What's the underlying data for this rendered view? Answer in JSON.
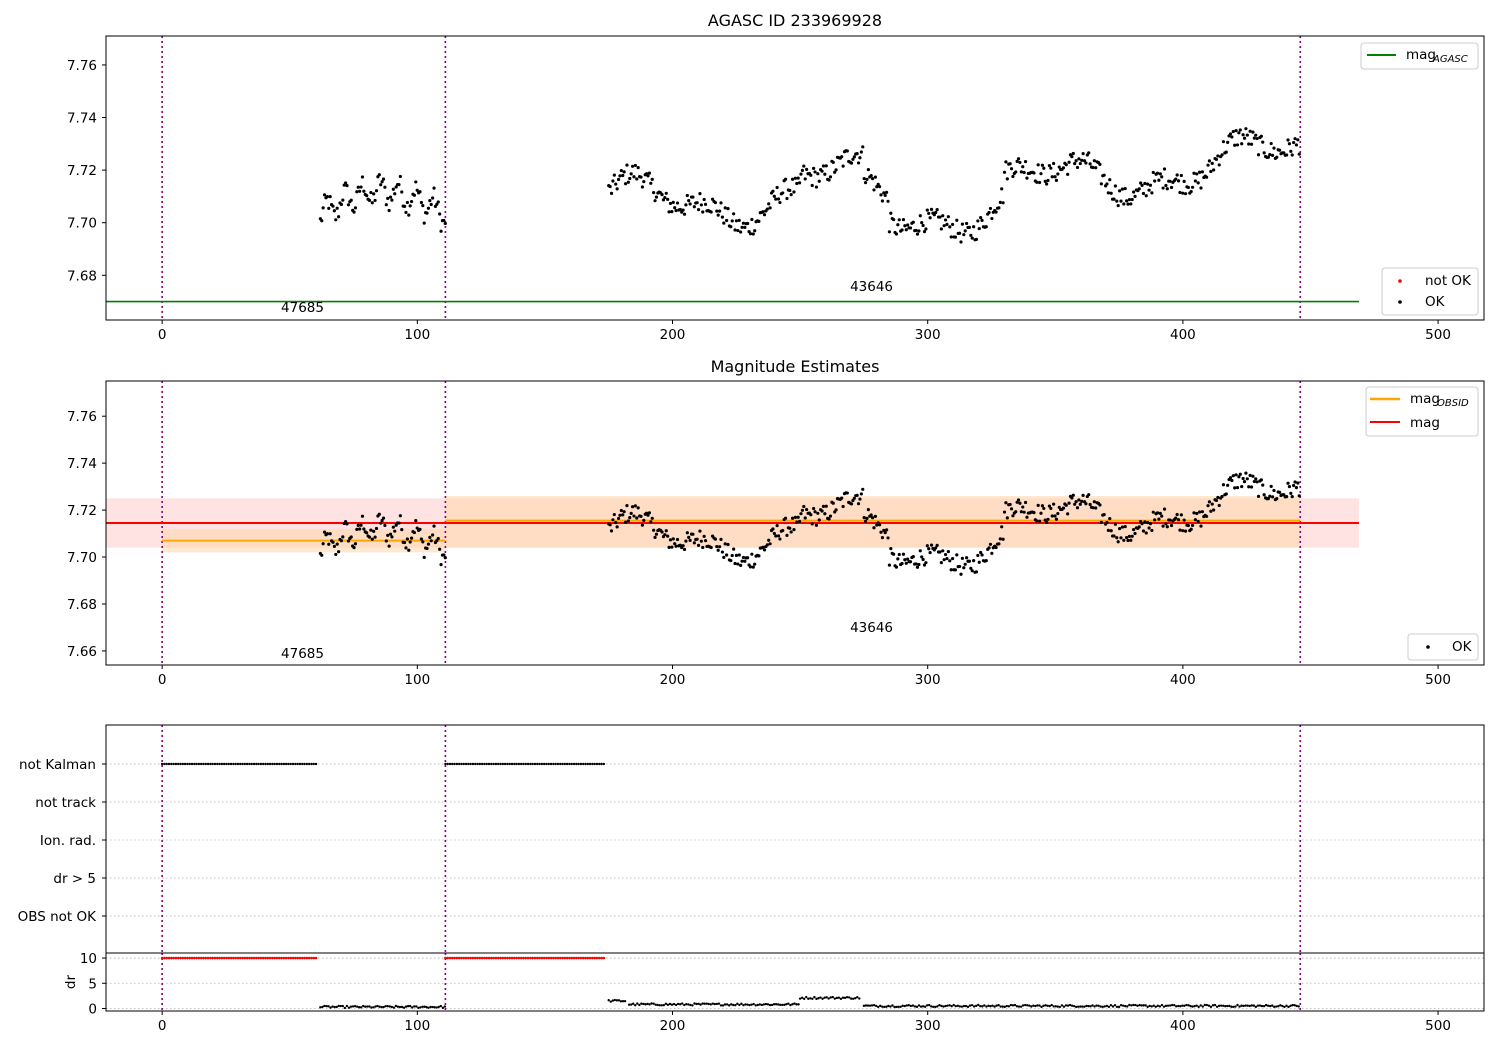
{
  "colors": {
    "agasc": "#008000",
    "obsid": "#ffa500",
    "mag": "#ff0000",
    "ok": "#000000",
    "not_ok": "#ff0000",
    "vline": "#800080",
    "mag_band": "#ffcccc",
    "obsid_band": "#ffd8b0"
  },
  "chart_data": [
    {
      "type": "scatter",
      "title": "AGASC ID 233969928",
      "xlim": [
        -22,
        518
      ],
      "ylim": [
        7.663,
        7.771
      ],
      "xticks": [
        0,
        100,
        200,
        300,
        400,
        500
      ],
      "yticks": [
        7.68,
        7.7,
        7.72,
        7.74,
        7.76
      ],
      "obsid_boundaries": [
        0,
        111,
        446
      ],
      "obsid_labels": [
        {
          "text": "47685",
          "x": 55,
          "y": 7.666
        },
        {
          "text": "43646",
          "x": 278,
          "y": 7.674
        }
      ],
      "lines": [
        {
          "name": "mag_AGASC",
          "label_main": "mag",
          "label_sub": "AGASC",
          "x": [
            -22,
            469
          ],
          "y": [
            7.67,
            7.67
          ],
          "color": "#008000"
        }
      ],
      "legend_lines_position": "upper-right",
      "legend_points_position": "lower-right",
      "legend_points": [
        {
          "label": "not OK",
          "color": "#ff0000"
        },
        {
          "label": "OK",
          "color": "#000000"
        }
      ],
      "series": [
        {
          "name": "OK",
          "x_range": [
            62,
            111
          ],
          "note": "points"
        },
        {
          "name": "OK",
          "x_range": [
            175,
            446
          ],
          "note": "points"
        }
      ]
    },
    {
      "type": "scatter",
      "title": "Magnitude Estimates",
      "xlim": [
        -22,
        518
      ],
      "ylim": [
        7.654,
        7.775
      ],
      "xticks": [
        0,
        100,
        200,
        300,
        400,
        500
      ],
      "yticks": [
        7.66,
        7.68,
        7.7,
        7.72,
        7.74,
        7.76
      ],
      "obsid_boundaries": [
        0,
        111,
        446
      ],
      "obsid_labels": [
        {
          "text": "47685",
          "x": 55,
          "y": 7.657
        },
        {
          "text": "43646",
          "x": 278,
          "y": 7.668
        }
      ],
      "bands": [
        {
          "name": "mag",
          "x": [
            -22,
            469
          ],
          "y": [
            7.704,
            7.725
          ],
          "color": "#ffcccc"
        },
        {
          "name": "mag_OBSID 47685",
          "x": [
            0,
            111
          ],
          "y": [
            7.702,
            7.712
          ],
          "color": "#ffd8b0"
        },
        {
          "name": "mag_OBSID 43646",
          "x": [
            111,
            446
          ],
          "y": [
            7.704,
            7.726
          ],
          "color": "#ffd8b0"
        }
      ],
      "lines": [
        {
          "name": "mag_OBSID 47685",
          "x": [
            0,
            111
          ],
          "y": [
            7.707,
            7.707
          ],
          "color": "#ffa500"
        },
        {
          "name": "mag_OBSID 43646",
          "x": [
            111,
            446
          ],
          "y": [
            7.7155,
            7.7155
          ],
          "color": "#ffa500"
        },
        {
          "name": "mag",
          "x": [
            -22,
            469
          ],
          "y": [
            7.7145,
            7.7145
          ],
          "color": "#ff0000"
        }
      ],
      "legend_lines": [
        {
          "label_main": "mag",
          "label_sub": "OBSID",
          "color": "#ffa500"
        },
        {
          "label_main": "mag",
          "label_sub": "",
          "color": "#ff0000"
        }
      ],
      "legend_points": [
        {
          "label": "OK",
          "color": "#000000"
        }
      ]
    },
    {
      "type": "scatter",
      "title": "",
      "xlim": [
        -22,
        518
      ],
      "categories": [
        "not Kalman",
        "not track",
        "Ion. rad.",
        "dr > 5",
        "OBS not OK"
      ],
      "flag_segments": [
        {
          "category": "not Kalman",
          "x_range": [
            0,
            61
          ]
        },
        {
          "category": "not Kalman",
          "x_range": [
            111,
            174
          ]
        }
      ],
      "obsid_boundaries": [
        0,
        111,
        446
      ]
    },
    {
      "type": "scatter",
      "title": "",
      "ylabel": "dr",
      "xlim": [
        -22,
        518
      ],
      "ylim": [
        -0.5,
        11
      ],
      "xticks": [
        0,
        100,
        200,
        300,
        400,
        500
      ],
      "yticks": [
        0,
        5,
        10
      ],
      "obsid_boundaries": [
        0,
        111,
        446
      ],
      "dr_saturated": [
        {
          "x_range": [
            0,
            61
          ],
          "y": 10
        },
        {
          "x_range": [
            111,
            174
          ],
          "y": 10
        }
      ],
      "dr_segments": [
        {
          "x_range": [
            62,
            111
          ],
          "y": 0.3
        },
        {
          "x_range": [
            175,
            182
          ],
          "y": 1.5
        },
        {
          "x_range": [
            183,
            250
          ],
          "y": 0.8
        },
        {
          "x_range": [
            250,
            274
          ],
          "y": 2.1
        },
        {
          "x_range": [
            275,
            446
          ],
          "y": 0.5
        }
      ]
    }
  ],
  "labels": {
    "title_top": "AGASC ID 233969928",
    "title_mid": "Magnitude Estimates",
    "obs1": "47685",
    "obs2": "43646",
    "leg_agasc_main": "mag",
    "leg_agasc_sub": "AGASC",
    "leg_obsid_main": "mag",
    "leg_obsid_sub": "OBSID",
    "leg_mag": "mag",
    "leg_notok": "not OK",
    "leg_ok": "OK",
    "dr_ylabel": "dr"
  }
}
